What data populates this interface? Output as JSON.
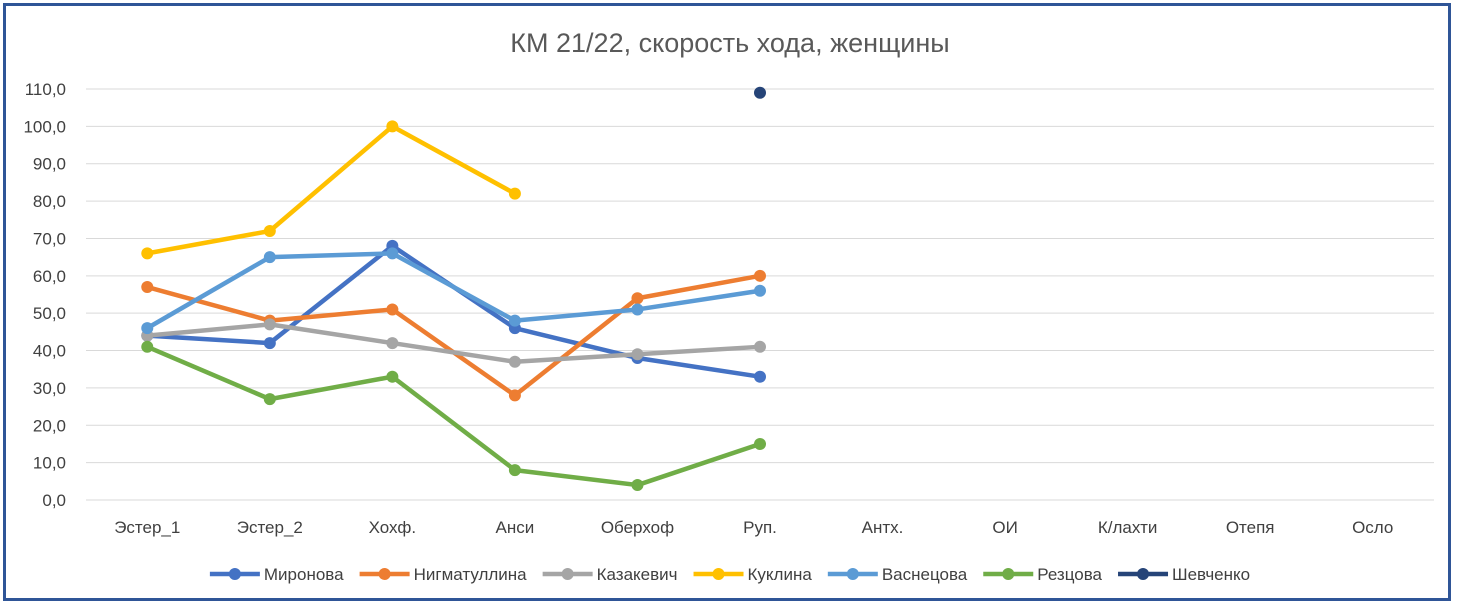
{
  "chart_data": {
    "type": "line",
    "title": "КМ 21/22, скорость хода, женщины",
    "xlabel": "",
    "ylabel": "",
    "categories": [
      "Эстер_1",
      "Эстер_2",
      "Хохф.",
      "Анси",
      "Оберхоф",
      "Руп.",
      "Антх.",
      "ОИ",
      "К/лахти",
      "Отепя",
      "Осло"
    ],
    "y_ticks": [
      "0,0",
      "10,0",
      "20,0",
      "30,0",
      "40,0",
      "50,0",
      "60,0",
      "70,0",
      "80,0",
      "90,0",
      "100,0",
      "110,0"
    ],
    "ylim": [
      0,
      110
    ],
    "grid": true,
    "legend_position": "bottom",
    "series": [
      {
        "name": "Миронова",
        "color": "#4472c4",
        "values": [
          44,
          42,
          68,
          46,
          38,
          33,
          null,
          null,
          null,
          null,
          null
        ]
      },
      {
        "name": "Нигматуллина",
        "color": "#ed7d31",
        "values": [
          57,
          48,
          51,
          28,
          54,
          60,
          null,
          null,
          null,
          null,
          null
        ]
      },
      {
        "name": "Казакевич",
        "color": "#a5a5a5",
        "values": [
          44,
          47,
          42,
          37,
          39,
          41,
          null,
          null,
          null,
          null,
          null
        ]
      },
      {
        "name": "Куклина",
        "color": "#ffc000",
        "values": [
          66,
          72,
          100,
          82,
          null,
          null,
          null,
          null,
          null,
          null,
          null
        ]
      },
      {
        "name": "Васнецова",
        "color": "#5b9bd5",
        "values": [
          46,
          65,
          66,
          48,
          51,
          56,
          null,
          null,
          null,
          null,
          null
        ]
      },
      {
        "name": "Резцова",
        "color": "#70ad47",
        "values": [
          41,
          27,
          33,
          8,
          4,
          15,
          null,
          null,
          null,
          null,
          null
        ]
      },
      {
        "name": "Шевченко",
        "color": "#264478",
        "values": [
          null,
          null,
          null,
          null,
          null,
          109,
          null,
          null,
          null,
          null,
          null
        ]
      }
    ]
  }
}
